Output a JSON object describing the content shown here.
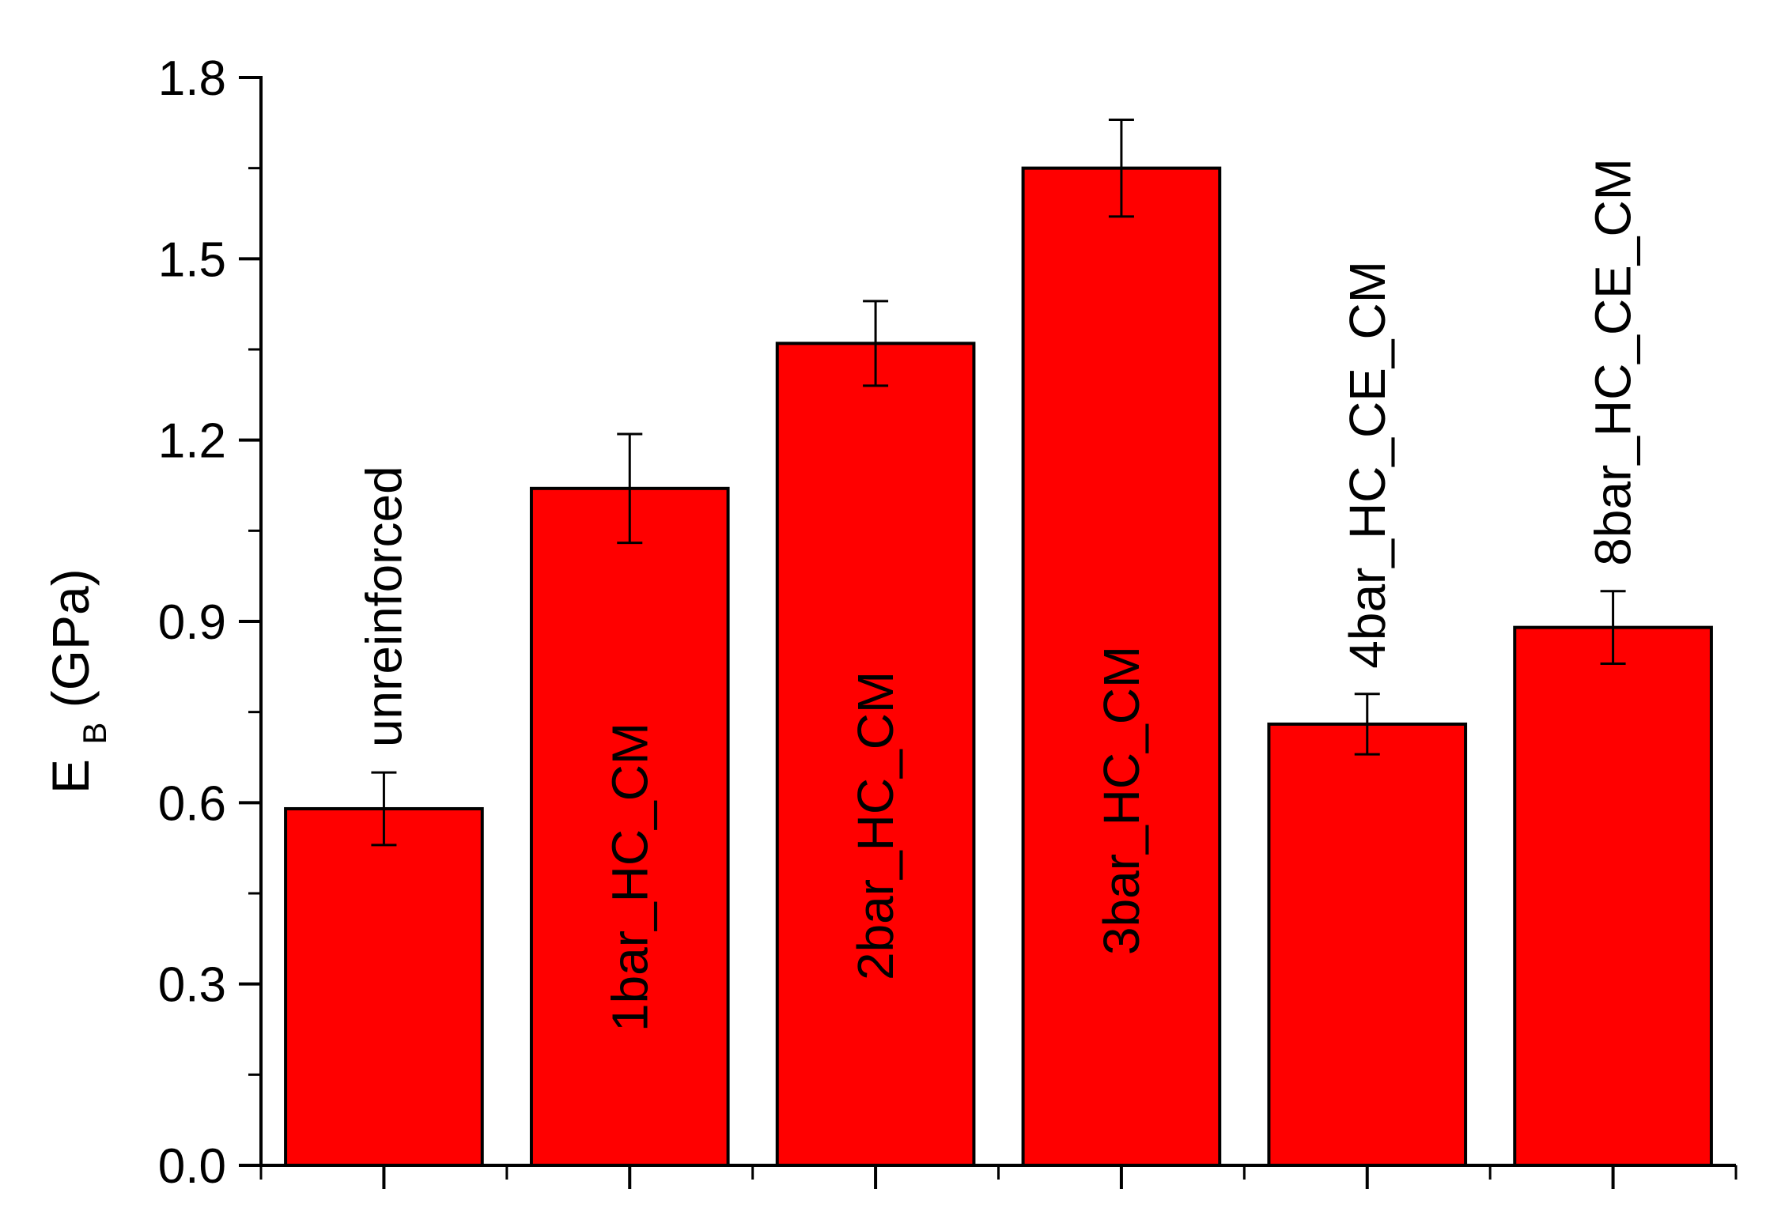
{
  "chart_data": {
    "type": "bar",
    "categories": [
      "unreinforced",
      "1bar_HC_CM",
      "2bar_HC_CM",
      "3bar_HC_CM",
      "4bar_HC_CE_CM",
      "8bar_HC_CE_CM"
    ],
    "series": [
      {
        "values": [
          0.59,
          1.12,
          1.36,
          1.65,
          0.73,
          0.89
        ],
        "errors": [
          0.06,
          0.09,
          0.07,
          0.08,
          0.05,
          0.06
        ]
      }
    ],
    "ylabel_main": "E",
    "ylabel_sub": "B",
    "ylabel_unit": "(GPa)",
    "xlabel": "",
    "ylim": [
      0,
      1.8
    ],
    "yticks": [
      "0.0",
      "0.3",
      "0.6",
      "0.9",
      "1.2",
      "1.5",
      "1.8"
    ],
    "bar_color": "#ff0000",
    "grid": false,
    "legend": "none"
  }
}
